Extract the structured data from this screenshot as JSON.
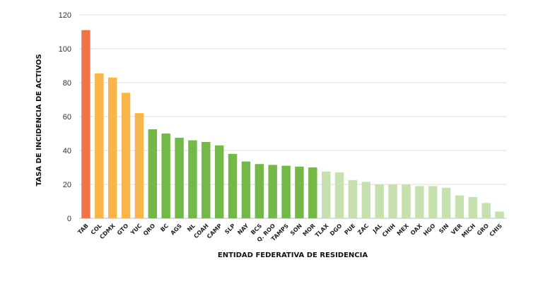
{
  "chart_data": {
    "type": "bar",
    "xlabel": "ENTIDAD FEDERATIVA DE RESIDENCIA",
    "ylabel": "TASA DE INCIDENCIA DE ACTIVOS",
    "ylim": [
      0,
      120
    ],
    "yticks": [
      0,
      20,
      40,
      60,
      80,
      100,
      120
    ],
    "grid": true,
    "categories": [
      "TAB",
      "COL",
      "CDMX",
      "GTO",
      "YUC",
      "QRO",
      "BC",
      "AGS",
      "NL",
      "COAH",
      "CAMP",
      "SLP",
      "NAY",
      "BCS",
      "Q. ROO",
      "TAMPS",
      "SON",
      "MOR",
      "TLAX",
      "DGO",
      "PUE",
      "ZAC",
      "JAL",
      "CHIH",
      "MEX",
      "OAX",
      "HGO",
      "SIN",
      "VER",
      "MICH",
      "GRO",
      "CHIS"
    ],
    "values": [
      111,
      85.5,
      83,
      74,
      62,
      52.5,
      50,
      47.5,
      46,
      45,
      43,
      38,
      33.5,
      32,
      31.5,
      31,
      30.5,
      30,
      27.5,
      27,
      22.5,
      21.5,
      20,
      20,
      20,
      19,
      19,
      18,
      13.5,
      12.5,
      9,
      4
    ],
    "colors": [
      "#f0734a",
      "#f8b64a",
      "#f8b64a",
      "#f8b64a",
      "#f8b64a",
      "#74b84a",
      "#74b84a",
      "#74b84a",
      "#74b84a",
      "#74b84a",
      "#74b84a",
      "#74b84a",
      "#74b84a",
      "#74b84a",
      "#74b84a",
      "#74b84a",
      "#74b84a",
      "#74b84a",
      "#c6e0b0",
      "#c6e0b0",
      "#c6e0b0",
      "#c6e0b0",
      "#c6e0b0",
      "#c6e0b0",
      "#c6e0b0",
      "#c6e0b0",
      "#c6e0b0",
      "#c6e0b0",
      "#c6e0b0",
      "#c6e0b0",
      "#c6e0b0",
      "#c6e0b0"
    ]
  }
}
